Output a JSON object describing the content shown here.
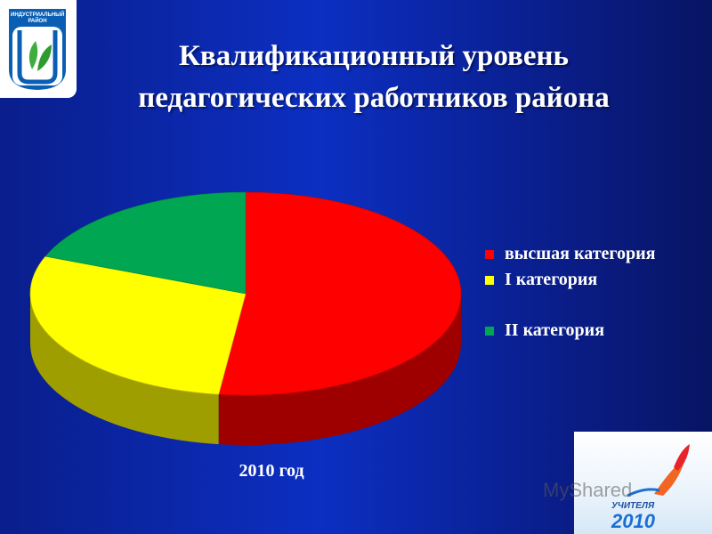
{
  "logo": {
    "text": "ИНДУСТРИАЛЬНЫЙ РАЙОН"
  },
  "slide_title": "Квалификационный уровень педагогических работников района",
  "chart_data": {
    "type": "pie",
    "title": "Квалификационный уровень педагогических работников района",
    "categories": [
      "высшая категория",
      "I категория",
      "II категория"
    ],
    "values": [
      52,
      29,
      19
    ],
    "colors": [
      "#ff0000",
      "#ffff00",
      "#00a651"
    ],
    "xlabel": "2010 год",
    "legend_position": "right",
    "style": "3d"
  },
  "corner_badge": {
    "word": "УЧИТЕЛЯ",
    "year": "2010"
  },
  "watermark": "MyShared",
  "colors": {
    "background": "#0c2fc2",
    "text": "#ffffff"
  }
}
